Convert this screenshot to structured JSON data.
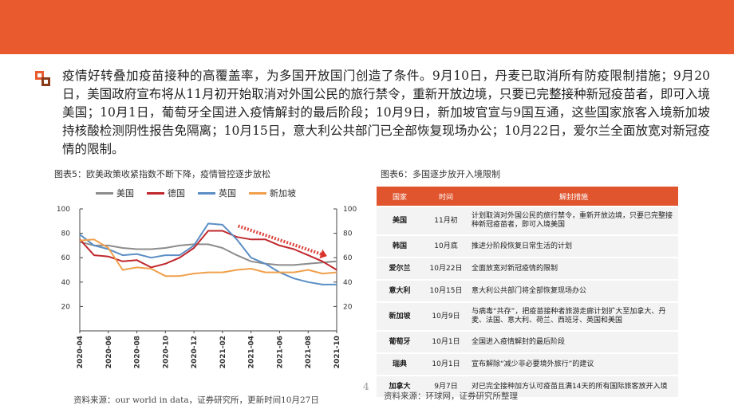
{
  "header": {
    "color": "#ea5a2f"
  },
  "body_text": "疫情好转叠加疫苗接种的高覆盖率，为多国开放国门创造了条件。9月10日，丹麦已取消所有防疫限制措施；9月20日，美国政府宣布将从11月初开始取消对外国公民的旅行禁令，重新开放边境，只要已完整接种新冠疫苗者，即可入境美国；10月1日，葡萄牙全国进入疫情解封的最后阶段；10月9日，新加坡官宣与9国互通，这些国家旅客入境新加坡持核酸检测阴性报告免隔离；10月15日，意大利公共部门已全部恢复现场办公；10月22日，爱尔兰全面放宽对新冠疫情的限制。",
  "left_caption": "图表5：欧美政策收紧指数不断下降，疫情管控逐步放松",
  "right_caption": "图表6：多国逐步放开入境限制",
  "left_source": "资料来源：our world in data，证券研究所，更新时间10月27日",
  "right_source": "资料来源：环球网，证券研究所整理",
  "page_number": "4",
  "chart_data": {
    "type": "line",
    "x": [
      "2020-04",
      "2020-05",
      "2020-06",
      "2020-07",
      "2020-08",
      "2020-09",
      "2020-10",
      "2020-11",
      "2020-12",
      "2021-01",
      "2021-02",
      "2021-03",
      "2021-04",
      "2021-05",
      "2021-06",
      "2021-07",
      "2021-08",
      "2021-09",
      "2021-10"
    ],
    "x_tick_labels": [
      "2020-04",
      "2020-06",
      "2020-08",
      "2020-10",
      "2020-12",
      "2021-02",
      "2021-04",
      "2021-06",
      "2021-08",
      "2021-10"
    ],
    "left_axis": {
      "ylim": [
        0,
        100
      ],
      "ticks": [
        0,
        20,
        40,
        60,
        80,
        100
      ]
    },
    "right_axis": {
      "ylim": [
        0,
        100
      ],
      "ticks": [
        0,
        20,
        40,
        60,
        80,
        100
      ]
    },
    "series": [
      {
        "name": "美国",
        "color": "#8c8c8c",
        "axis": "left",
        "values": [
          73,
          70,
          70,
          68,
          67,
          67,
          68,
          70,
          71,
          71,
          68,
          62,
          57,
          55,
          54,
          54,
          55,
          56,
          57
        ]
      },
      {
        "name": "德国",
        "color": "#c0282d",
        "axis": "left",
        "values": [
          75,
          62,
          61,
          57,
          58,
          52,
          55,
          60,
          68,
          82,
          82,
          77,
          75,
          75,
          70,
          67,
          62,
          57,
          50
        ]
      },
      {
        "name": "英国",
        "color": "#5b8ec5",
        "axis": "right",
        "values": [
          79,
          70,
          67,
          62,
          63,
          60,
          62,
          62,
          70,
          88,
          87,
          75,
          60,
          55,
          48,
          43,
          40,
          38,
          38
        ]
      },
      {
        "name": "新加坡",
        "color": "#f0a04b",
        "axis": "right",
        "values": [
          74,
          75,
          68,
          50,
          52,
          51,
          45,
          45,
          47,
          48,
          48,
          50,
          51,
          48,
          48,
          48,
          50,
          47,
          48
        ]
      }
    ],
    "annotation": "downward trend arrow"
  },
  "policy_table": {
    "headers": [
      "国家",
      "时间",
      "解封措施"
    ],
    "rows": [
      {
        "country": "美国",
        "date": "11月初",
        "measure": "计划取消对外国公民的旅行禁令，重新开放边境，只要已完整接种新冠疫苗者，即可入境美国"
      },
      {
        "country": "韩国",
        "date": "10月底",
        "measure": "推进分阶段恢复日常生活的计划"
      },
      {
        "country": "爱尔兰",
        "date": "10月22日",
        "measure": "全面放宽对新冠疫情的限制"
      },
      {
        "country": "意大利",
        "date": "10月15日",
        "measure": "意大利公共部门将全部恢复现场办公"
      },
      {
        "country": "新加坡",
        "date": "10月9日",
        "measure": "与病毒“共存”，把疫苗接种者旅游走廊计划扩大至加拿大、丹麦、法国、意大利、荷兰、西班牙、英国和美国"
      },
      {
        "country": "葡萄牙",
        "date": "10月1日",
        "measure": "全国进入疫情解封的最后阶段"
      },
      {
        "country": "瑞典",
        "date": "10月1日",
        "measure": "宣布解除“减少非必要境外旅行”的建议"
      },
      {
        "country": "加拿大",
        "date": "9月7日",
        "measure": "对已完全接种加方认可疫苗且满14天的所有国际旅客放开入境"
      }
    ]
  }
}
